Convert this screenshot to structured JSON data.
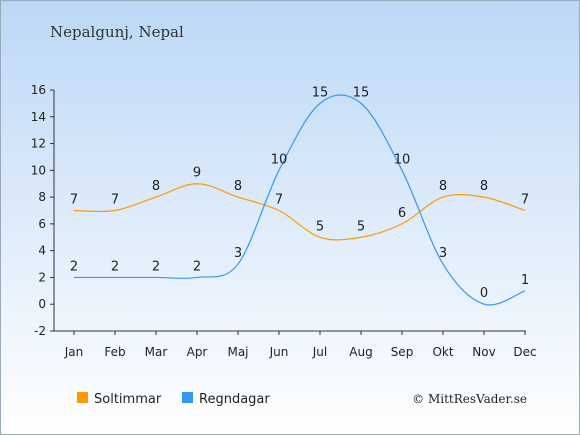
{
  "chart_data": {
    "type": "line",
    "title": "Nepalgunj, Nepal",
    "categories": [
      "Jan",
      "Feb",
      "Mar",
      "Apr",
      "Maj",
      "Jun",
      "Jul",
      "Aug",
      "Sep",
      "Okt",
      "Nov",
      "Dec"
    ],
    "series": [
      {
        "name": "Soltimmar",
        "color": "#ff9900",
        "values": [
          7,
          7,
          8,
          9,
          8,
          7,
          5,
          5,
          6,
          8,
          8,
          7
        ]
      },
      {
        "name": "Regndagar",
        "color": "#3399ee",
        "values": [
          2,
          2,
          2,
          2,
          3,
          10,
          15,
          15,
          10,
          3,
          0,
          1
        ]
      }
    ],
    "ylim": [
      -2,
      16
    ],
    "yticks": [
      -2,
      0,
      2,
      4,
      6,
      8,
      10,
      12,
      14,
      16
    ],
    "grid": false,
    "legend_position": "bottom-left",
    "credit": "© MittResVader.se"
  }
}
